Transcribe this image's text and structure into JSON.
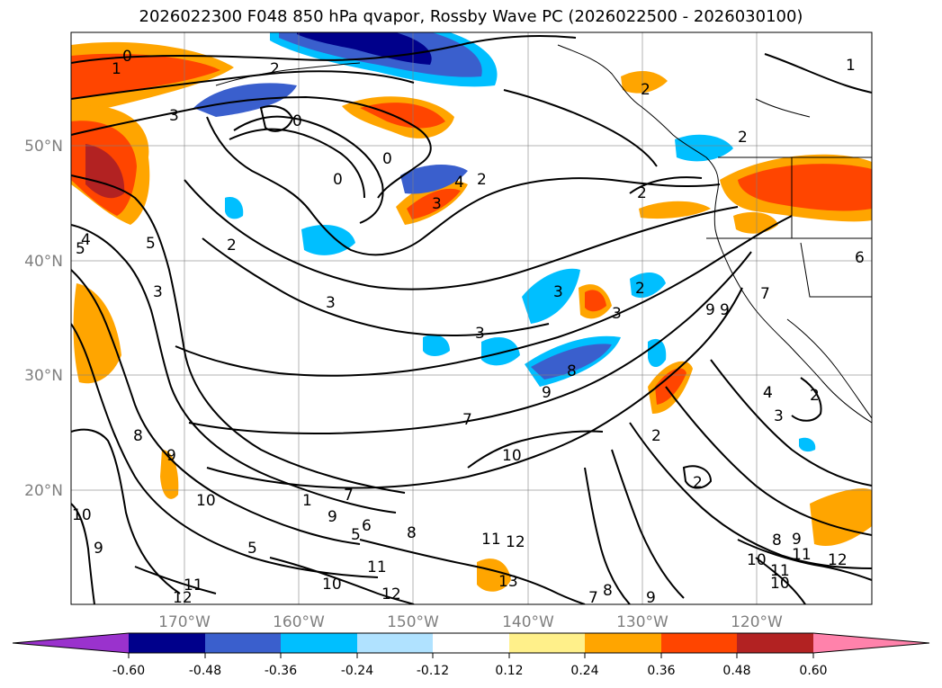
{
  "title": "2026022300 F048 850 hPa qvapor, Rossby Wave PC (2026022500 - 2026030100)",
  "map": {
    "x_labels": [
      "170°W",
      "160°W",
      "150°W",
      "140°W",
      "130°W",
      "120°W"
    ],
    "y_labels": [
      "50°N",
      "40°N",
      "30°N",
      "20°N"
    ],
    "contour_labels": [
      "0",
      "1",
      "2",
      "3",
      "0",
      "0",
      "0",
      "2",
      "4",
      "3",
      "2",
      "2",
      "1",
      "5",
      "4",
      "5",
      "3",
      "2",
      "3",
      "3",
      "2",
      "3",
      "3",
      "4",
      "9",
      "8",
      "9",
      "7",
      "10",
      "9",
      "8",
      "10",
      "9",
      "7",
      "5",
      "5",
      "6",
      "8",
      "11",
      "12",
      "11",
      "10",
      "12",
      "13",
      "12",
      "11",
      "10",
      "9",
      "9",
      "8",
      "7",
      "12",
      "11",
      "10",
      "9",
      "8",
      "10",
      "11",
      "4",
      "3",
      "2",
      "2",
      "2",
      "6",
      "7",
      "9",
      "1",
      "2"
    ],
    "colors": {
      "coast": "#000000",
      "grid": "#808080"
    }
  },
  "colorbar": {
    "ticks": [
      "-0.60",
      "-0.48",
      "-0.36",
      "-0.24",
      "-0.12",
      "0.12",
      "0.24",
      "0.36",
      "0.48",
      "0.60"
    ],
    "colors": [
      "#9a32cd",
      "#00008b",
      "#3a5fcd",
      "#00bfff",
      "#b0e2ff",
      "#ffffff",
      "#fff08a",
      "#ffa500",
      "#ff4500",
      "#b22222",
      "#ff82ab"
    ]
  }
}
